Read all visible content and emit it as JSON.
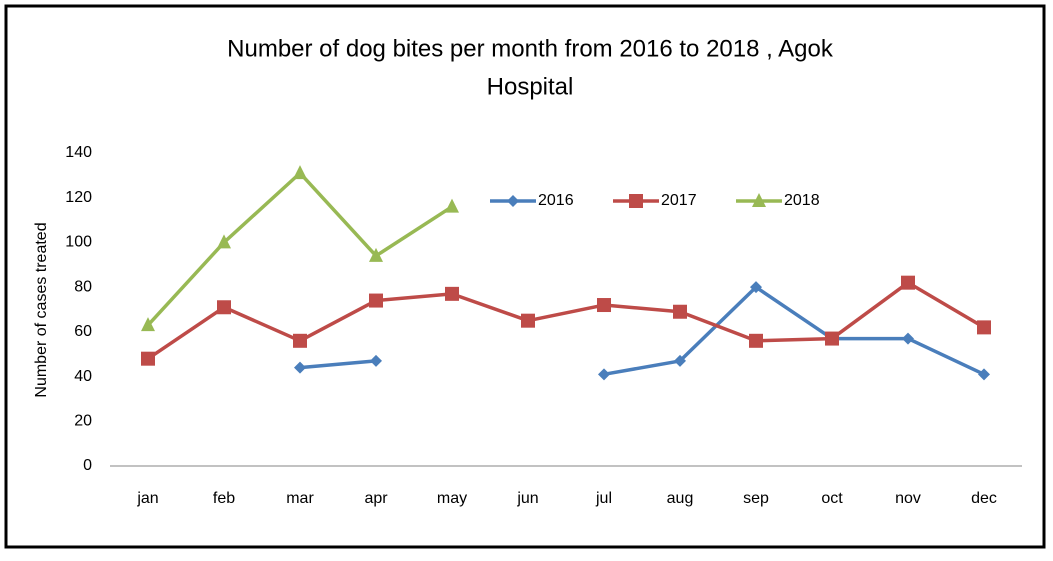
{
  "chart_data": {
    "type": "line",
    "title": "Number of dog bites per month from 2016 to 2018 , Agok",
    "title_line2": "Hospital",
    "y_label": "Number of cases treated",
    "categories": [
      "jan",
      "feb",
      "mar",
      "apr",
      "may",
      "jun",
      "jul",
      "aug",
      "sep",
      "oct",
      "nov",
      "dec"
    ],
    "series": [
      {
        "name": "2016",
        "color": "#4a7ebb",
        "marker": "diamond",
        "values": [
          null,
          null,
          44,
          47,
          null,
          null,
          41,
          47,
          80,
          57,
          57,
          41
        ]
      },
      {
        "name": "2017",
        "color": "#be4b48",
        "marker": "square",
        "values": [
          48,
          71,
          56,
          74,
          77,
          65,
          72,
          69,
          56,
          57,
          82,
          62
        ]
      },
      {
        "name": "2018",
        "color": "#98b954",
        "marker": "triangle",
        "values": [
          63,
          100,
          131,
          94,
          116,
          null,
          null,
          null,
          null,
          null,
          null,
          null
        ]
      }
    ],
    "ylim": [
      0,
      140
    ],
    "yticks": [
      0,
      20,
      40,
      60,
      80,
      100,
      120,
      140
    ],
    "grid": false
  }
}
